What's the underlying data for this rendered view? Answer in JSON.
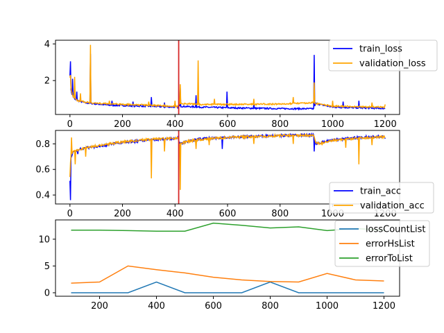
{
  "chart_data": [
    {
      "type": "line",
      "title": "",
      "xlabel": "",
      "ylabel": "",
      "xlim": [
        -55,
        1255
      ],
      "ylim": [
        0.15,
        4.2
      ],
      "xticks": [
        0,
        200,
        400,
        600,
        800,
        1000,
        1200
      ],
      "yticks": [
        2,
        4
      ],
      "xtick_labels": [
        "0",
        "200",
        "400",
        "600",
        "800",
        "1000",
        "1200"
      ],
      "ytick_labels": [
        "2",
        "4"
      ],
      "vline": {
        "x": 414,
        "color": "#d62728"
      },
      "legend": {
        "placement": "top-right",
        "entries": [
          {
            "label": "train_loss",
            "color": "#0000ff"
          },
          {
            "label": "validation_loss",
            "color": "#ffa500"
          }
        ]
      },
      "series": [
        {
          "name": "train_loss",
          "color": "#0000ff",
          "baseline": [
            [
              0,
              2.3
            ],
            [
              3,
              1.6
            ],
            [
              8,
              1.2
            ],
            [
              20,
              0.95
            ],
            [
              60,
              0.78
            ],
            [
              150,
              0.66
            ],
            [
              300,
              0.6
            ],
            [
              413,
              0.55
            ],
            [
              415,
              0.6
            ],
            [
              500,
              0.55
            ],
            [
              650,
              0.5
            ],
            [
              800,
              0.47
            ],
            [
              930,
              0.46
            ],
            [
              935,
              0.75
            ],
            [
              1000,
              0.55
            ],
            [
              1200,
              0.48
            ]
          ],
          "spikes": [
            [
              1,
              3.05
            ],
            [
              10,
              2.1
            ],
            [
              25,
              1.4
            ],
            [
              78,
              3.45
            ],
            [
              160,
              0.9
            ],
            [
              240,
              0.85
            ],
            [
              310,
              1.1
            ],
            [
              360,
              0.8
            ],
            [
              420,
              1.6
            ],
            [
              480,
              1.2
            ],
            [
              598,
              1.4
            ],
            [
              700,
              0.75
            ],
            [
              930,
              3.4
            ],
            [
              1040,
              0.85
            ],
            [
              1100,
              0.9
            ]
          ]
        },
        {
          "name": "validation_loss",
          "color": "#ffa500",
          "baseline": [
            [
              0,
              2.2
            ],
            [
              5,
              1.5
            ],
            [
              12,
              1.1
            ],
            [
              30,
              0.9
            ],
            [
              80,
              0.78
            ],
            [
              200,
              0.7
            ],
            [
              300,
              0.66
            ],
            [
              413,
              0.6
            ],
            [
              415,
              0.75
            ],
            [
              500,
              0.7
            ],
            [
              620,
              0.7
            ],
            [
              800,
              0.72
            ],
            [
              930,
              0.8
            ],
            [
              935,
              0.75
            ],
            [
              1000,
              0.6
            ],
            [
              1200,
              0.55
            ]
          ],
          "spikes": [
            [
              1,
              2.3
            ],
            [
              18,
              2.2
            ],
            [
              40,
              1.3
            ],
            [
              78,
              3.95
            ],
            [
              150,
              0.9
            ],
            [
              300,
              0.85
            ],
            [
              400,
              0.9
            ],
            [
              420,
              1.8
            ],
            [
              488,
              3.1
            ],
            [
              550,
              1.0
            ],
            [
              700,
              1.0
            ],
            [
              850,
              1.1
            ],
            [
              930,
              1.9
            ],
            [
              1000,
              0.9
            ],
            [
              1150,
              0.8
            ],
            [
              1200,
              0.7
            ]
          ]
        }
      ]
    },
    {
      "type": "line",
      "title": "",
      "xlabel": "",
      "ylabel": "",
      "xlim": [
        -55,
        1255
      ],
      "ylim": [
        0.33,
        0.905
      ],
      "xticks": [
        0,
        200,
        400,
        600,
        800,
        1000,
        1200
      ],
      "yticks": [
        0.4,
        0.6,
        0.8
      ],
      "xtick_labels": [
        "0",
        "200",
        "400",
        "600",
        "800",
        "1000",
        "1200"
      ],
      "ytick_labels": [
        "0.4",
        "0.6",
        "0.8"
      ],
      "vline": {
        "x": 414,
        "color": "#d62728"
      },
      "legend": {
        "placement": "bottom-right",
        "entries": [
          {
            "label": "train_acc",
            "color": "#0000ff"
          },
          {
            "label": "validation_acc",
            "color": "#ffa500"
          }
        ]
      },
      "series": [
        {
          "name": "train_acc",
          "color": "#0000ff",
          "baseline": [
            [
              0,
              0.52
            ],
            [
              3,
              0.68
            ],
            [
              10,
              0.73
            ],
            [
              40,
              0.76
            ],
            [
              100,
              0.78
            ],
            [
              200,
              0.81
            ],
            [
              300,
              0.83
            ],
            [
              413,
              0.845
            ],
            [
              416,
              0.8
            ],
            [
              450,
              0.82
            ],
            [
              500,
              0.84
            ],
            [
              600,
              0.85
            ],
            [
              700,
              0.86
            ],
            [
              800,
              0.865
            ],
            [
              930,
              0.87
            ],
            [
              935,
              0.8
            ],
            [
              1000,
              0.83
            ],
            [
              1100,
              0.85
            ],
            [
              1200,
              0.86
            ]
          ],
          "spikes": [
            [
              1,
              0.36
            ],
            [
              30,
              0.72
            ],
            [
              580,
              0.76
            ],
            [
              930,
              0.74
            ],
            [
              1200,
              0.84
            ]
          ]
        },
        {
          "name": "validation_acc",
          "color": "#ffa500",
          "baseline": [
            [
              0,
              0.55
            ],
            [
              3,
              0.7
            ],
            [
              10,
              0.74
            ],
            [
              40,
              0.76
            ],
            [
              100,
              0.785
            ],
            [
              200,
              0.815
            ],
            [
              300,
              0.835
            ],
            [
              413,
              0.845
            ],
            [
              416,
              0.8
            ],
            [
              450,
              0.82
            ],
            [
              500,
              0.835
            ],
            [
              600,
              0.85
            ],
            [
              700,
              0.855
            ],
            [
              800,
              0.865
            ],
            [
              930,
              0.865
            ],
            [
              935,
              0.8
            ],
            [
              1000,
              0.825
            ],
            [
              1100,
              0.845
            ],
            [
              1200,
              0.855
            ]
          ],
          "spikes": [
            [
              5,
              0.85
            ],
            [
              20,
              0.64
            ],
            [
              60,
              0.7
            ],
            [
              310,
              0.53
            ],
            [
              360,
              0.74
            ],
            [
              420,
              0.44
            ],
            [
              480,
              0.76
            ],
            [
              530,
              0.79
            ],
            [
              700,
              0.8
            ],
            [
              850,
              0.8
            ],
            [
              960,
              0.79
            ],
            [
              1050,
              0.77
            ],
            [
              1100,
              0.64
            ],
            [
              1150,
              0.79
            ]
          ]
        }
      ]
    },
    {
      "type": "line",
      "title": "",
      "xlabel": "",
      "ylabel": "",
      "xlim": [
        45,
        1255
      ],
      "ylim": [
        -0.65,
        13.6
      ],
      "xticks": [
        200,
        400,
        600,
        800,
        1000,
        1200
      ],
      "yticks": [
        0,
        5,
        10
      ],
      "xtick_labels": [
        "200",
        "400",
        "600",
        "800",
        "1000",
        "1200"
      ],
      "ytick_labels": [
        "0",
        "5",
        "10"
      ],
      "legend": {
        "placement": "top-right",
        "entries": [
          {
            "label": "lossCountList",
            "color": "#1f77b4"
          },
          {
            "label": "errorHsList",
            "color": "#ff7f0e"
          },
          {
            "label": "errorToList",
            "color": "#2ca02c"
          }
        ]
      },
      "x": [
        100,
        200,
        300,
        400,
        500,
        600,
        700,
        800,
        900,
        1000,
        1100,
        1200
      ],
      "series": [
        {
          "name": "lossCountList",
          "color": "#1f77b4",
          "values": [
            0,
            0,
            0,
            2,
            0,
            0,
            0,
            2,
            0,
            0,
            0,
            0
          ]
        },
        {
          "name": "errorHsList",
          "color": "#ff7f0e",
          "values": [
            1.8,
            2.0,
            5.0,
            4.3,
            3.7,
            2.9,
            2.4,
            2.1,
            2.0,
            3.6,
            2.4,
            2.2
          ]
        },
        {
          "name": "errorToList",
          "color": "#2ca02c",
          "values": [
            11.7,
            11.7,
            11.6,
            11.5,
            11.5,
            13.0,
            12.6,
            12.1,
            12.3,
            11.6,
            12.0,
            11.7
          ]
        }
      ]
    }
  ]
}
